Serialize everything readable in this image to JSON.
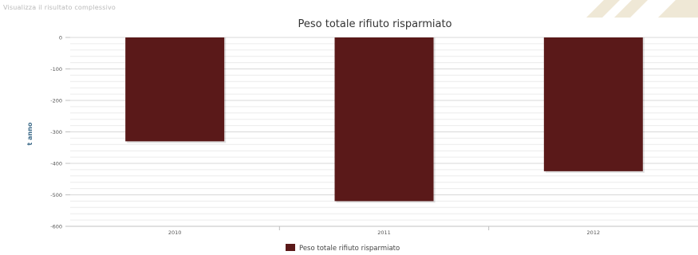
{
  "header": {
    "link_text": "Visualizza il risultato complessivo"
  },
  "chart_data": {
    "type": "bar",
    "title": "Peso totale rifiuto risparmiato",
    "ylabel": "t anno",
    "xlabel": "",
    "categories": [
      "2010",
      "2011",
      "2012"
    ],
    "series": [
      {
        "name": "Peso totale rifiuto risparmiato",
        "values": [
          -330,
          -520,
          -425
        ],
        "color": "#5a1919"
      }
    ],
    "ylim": [
      -600,
      0
    ],
    "yticks": [
      "0",
      "-100",
      "-200",
      "-300",
      "-400",
      "-500",
      "-600"
    ],
    "grid": true,
    "legend_position": "bottom-center"
  },
  "colors": {
    "bar": "#5a1919",
    "ylabel": "#3f6c8a",
    "watermark": "#efe8d6"
  }
}
